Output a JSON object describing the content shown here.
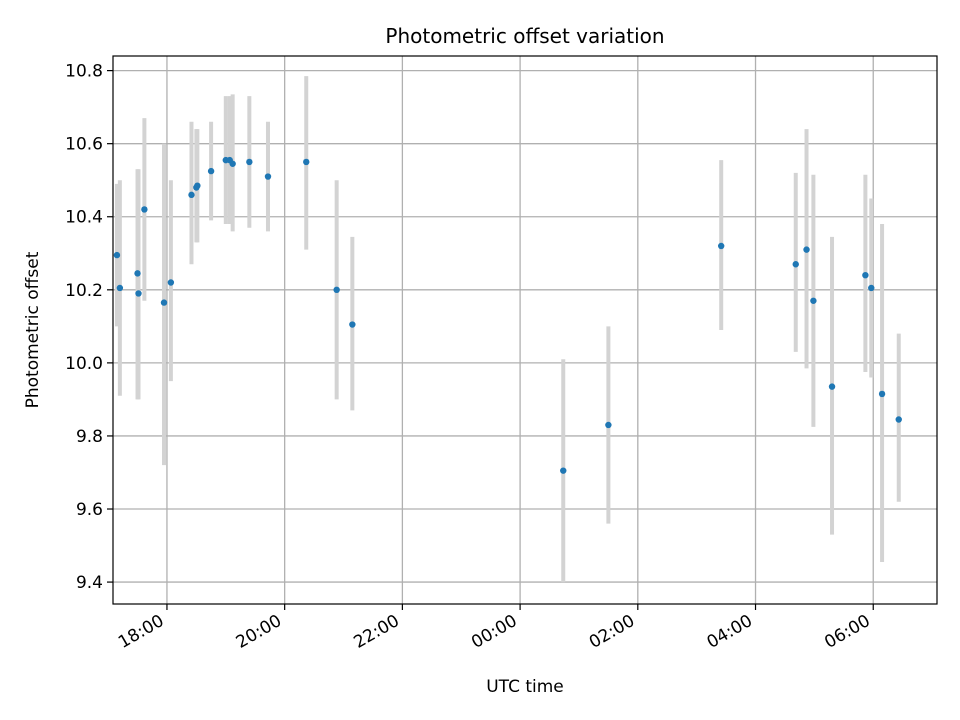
{
  "chart_data": {
    "type": "scatter",
    "title": "Photometric offset variation",
    "xlabel": "UTC time",
    "ylabel": "Photometric offset",
    "grid": true,
    "xlim": [
      "17:05",
      "07:05"
    ],
    "ylim": [
      9.34,
      10.84
    ],
    "x_ticks": [
      "18:00",
      "20:00",
      "22:00",
      "00:00",
      "02:00",
      "04:00",
      "06:00"
    ],
    "y_ticks": [
      "9.4",
      "9.6",
      "9.8",
      "10.0",
      "10.2",
      "10.4",
      "10.6",
      "10.8"
    ],
    "colors": {
      "marker": "#1f77b4",
      "errorbar": "#d3d3d3",
      "grid": "#b0b0b0"
    },
    "series": [
      {
        "points": [
          {
            "time": "17:09",
            "value": 10.295,
            "lo": 10.1,
            "hi": 10.49
          },
          {
            "time": "17:12",
            "value": 10.205,
            "lo": 9.91,
            "hi": 10.5
          },
          {
            "time": "17:30",
            "value": 10.245,
            "lo": 9.9,
            "hi": 10.53
          },
          {
            "time": "17:31",
            "value": 10.19,
            "lo": 9.9,
            "hi": 10.53
          },
          {
            "time": "17:37",
            "value": 10.42,
            "lo": 10.17,
            "hi": 10.67
          },
          {
            "time": "17:57",
            "value": 10.165,
            "lo": 9.72,
            "hi": 10.6
          },
          {
            "time": "18:04",
            "value": 10.22,
            "lo": 9.95,
            "hi": 10.5
          },
          {
            "time": "18:25",
            "value": 10.46,
            "lo": 10.27,
            "hi": 10.66
          },
          {
            "time": "18:30",
            "value": 10.48,
            "lo": 10.33,
            "hi": 10.64
          },
          {
            "time": "18:31",
            "value": 10.485,
            "lo": 10.33,
            "hi": 10.64
          },
          {
            "time": "18:45",
            "value": 10.525,
            "lo": 10.39,
            "hi": 10.66
          },
          {
            "time": "19:00",
            "value": 10.555,
            "lo": 10.38,
            "hi": 10.73
          },
          {
            "time": "19:04",
            "value": 10.555,
            "lo": 10.38,
            "hi": 10.73
          },
          {
            "time": "19:07",
            "value": 10.545,
            "lo": 10.36,
            "hi": 10.735
          },
          {
            "time": "19:24",
            "value": 10.55,
            "lo": 10.37,
            "hi": 10.73
          },
          {
            "time": "19:43",
            "value": 10.51,
            "lo": 10.36,
            "hi": 10.66
          },
          {
            "time": "20:22",
            "value": 10.55,
            "lo": 10.31,
            "hi": 10.785
          },
          {
            "time": "20:53",
            "value": 10.2,
            "lo": 9.9,
            "hi": 10.5
          },
          {
            "time": "21:09",
            "value": 10.105,
            "lo": 9.87,
            "hi": 10.345
          },
          {
            "time": "00:44",
            "value": 9.705,
            "lo": 9.4,
            "hi": 10.01
          },
          {
            "time": "01:30",
            "value": 9.83,
            "lo": 9.56,
            "hi": 10.1
          },
          {
            "time": "03:25",
            "value": 10.32,
            "lo": 10.09,
            "hi": 10.555
          },
          {
            "time": "04:41",
            "value": 10.27,
            "lo": 10.03,
            "hi": 10.52
          },
          {
            "time": "04:52",
            "value": 10.31,
            "lo": 9.985,
            "hi": 10.64
          },
          {
            "time": "04:59",
            "value": 10.17,
            "lo": 9.825,
            "hi": 10.515
          },
          {
            "time": "05:18",
            "value": 9.935,
            "lo": 9.53,
            "hi": 10.345
          },
          {
            "time": "05:52",
            "value": 10.24,
            "lo": 9.975,
            "hi": 10.515
          },
          {
            "time": "05:58",
            "value": 10.205,
            "lo": 9.96,
            "hi": 10.45
          },
          {
            "time": "06:09",
            "value": 9.915,
            "lo": 9.455,
            "hi": 10.38
          },
          {
            "time": "06:26",
            "value": 9.845,
            "lo": 9.62,
            "hi": 10.08
          }
        ]
      }
    ]
  }
}
